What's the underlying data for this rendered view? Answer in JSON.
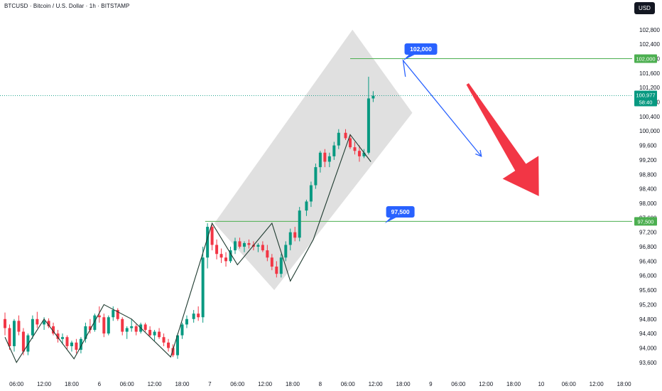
{
  "header": {
    "title": "BTCUSD · Bitcoin / U.S. Dollar · 1h · BITSTAMP",
    "currency": "USD"
  },
  "colors": {
    "up": "#089981",
    "down": "#f23645",
    "level_line": "#4caf50",
    "callout": "#2962ff",
    "arrow": "#f23645",
    "channel": "#9e9e9e"
  },
  "chart_data": {
    "type": "candlestick",
    "symbol": "BTCUSD",
    "interval": "1h",
    "exchange": "BITSTAMP",
    "ylim": [
      93400,
      103150
    ],
    "y_ticks": [
      93600,
      94000,
      94400,
      94800,
      95200,
      95600,
      96000,
      96400,
      96800,
      97200,
      97600,
      98000,
      98400,
      98800,
      99200,
      99600,
      100000,
      100400,
      100800,
      101200,
      101600,
      102000,
      102400,
      102800
    ],
    "y_tick_labels": [
      "93,600",
      "94,000",
      "94,400",
      "94,800",
      "95,200",
      "95,600",
      "96,000",
      "96,400",
      "96,800",
      "97,200",
      "97,600",
      "98,000",
      "98,400",
      "98,800",
      "99,200",
      "99,600",
      "100,000",
      "100,400",
      "100,800",
      "101,200",
      "101,600",
      "102,000",
      "102,400",
      "102,800"
    ],
    "x_ticks": [
      {
        "bar": 5,
        "label": "06:00"
      },
      {
        "bar": 17,
        "label": "12:00"
      },
      {
        "bar": 29,
        "label": "18:00"
      },
      {
        "bar": 41,
        "label": "6"
      },
      {
        "bar": 53,
        "label": "06:00"
      },
      {
        "bar": 65,
        "label": "12:00"
      },
      {
        "bar": 77,
        "label": "18:00"
      },
      {
        "bar": 89,
        "label": "7"
      },
      {
        "bar": 101,
        "label": "06:00"
      },
      {
        "bar": 113,
        "label": "12:00"
      },
      {
        "bar": 125,
        "label": "18:00"
      },
      {
        "bar": 137,
        "label": "8"
      },
      {
        "bar": 149,
        "label": "06:00"
      },
      {
        "bar": 161,
        "label": "12:00"
      },
      {
        "bar": 173,
        "label": "18:00"
      },
      {
        "bar": 185,
        "label": "9"
      },
      {
        "bar": 197,
        "label": "06:00"
      },
      {
        "bar": 209,
        "label": "12:00"
      },
      {
        "bar": 221,
        "label": "18:00"
      },
      {
        "bar": 233,
        "label": "10"
      },
      {
        "bar": 245,
        "label": "06:00"
      },
      {
        "bar": 257,
        "label": "12:00"
      },
      {
        "bar": 269,
        "label": "18:00"
      }
    ],
    "candles": [
      [
        94800,
        94980,
        94350,
        94550
      ],
      [
        94550,
        94650,
        93950,
        94050
      ],
      [
        94050,
        94800,
        93900,
        94750
      ],
      [
        94750,
        94900,
        94350,
        94450
      ],
      [
        94450,
        94550,
        93800,
        93900
      ],
      [
        93900,
        94400,
        93800,
        94350
      ],
      [
        94350,
        94900,
        94250,
        94800
      ],
      [
        94800,
        95000,
        94550,
        94650
      ],
      [
        94650,
        94850,
        94500,
        94750
      ],
      [
        94750,
        94820,
        94550,
        94600
      ],
      [
        94600,
        94700,
        94350,
        94400
      ],
      [
        94400,
        94500,
        94150,
        94250
      ],
      [
        94250,
        94400,
        94100,
        94300
      ],
      [
        94300,
        94350,
        93950,
        94050
      ],
      [
        94050,
        94200,
        93900,
        94150
      ],
      [
        94150,
        94250,
        93850,
        93950
      ],
      [
        93950,
        94300,
        93850,
        94250
      ],
      [
        94250,
        94700,
        94150,
        94600
      ],
      [
        94600,
        94800,
        94400,
        94500
      ],
      [
        94500,
        94950,
        94450,
        94900
      ],
      [
        94900,
        95150,
        94700,
        94850
      ],
      [
        94850,
        94950,
        94300,
        94400
      ],
      [
        94400,
        94900,
        94350,
        94850
      ],
      [
        94850,
        95150,
        94750,
        95050
      ],
      [
        95050,
        95100,
        94750,
        94800
      ],
      [
        94800,
        94850,
        94350,
        94450
      ],
      [
        94450,
        94600,
        94250,
        94550
      ],
      [
        94550,
        94800,
        94450,
        94600
      ],
      [
        94600,
        94650,
        94350,
        94450
      ],
      [
        94450,
        94700,
        94400,
        94650
      ],
      [
        94650,
        94700,
        94450,
        94500
      ],
      [
        94500,
        94600,
        94300,
        94350
      ],
      [
        94350,
        94500,
        94200,
        94450
      ],
      [
        94450,
        94550,
        94250,
        94300
      ],
      [
        94300,
        94400,
        94050,
        94150
      ],
      [
        94150,
        94250,
        93900,
        94000
      ],
      [
        94000,
        94100,
        93750,
        93800
      ],
      [
        93800,
        94400,
        93700,
        94350
      ],
      [
        94350,
        94700,
        94250,
        94650
      ],
      [
        94650,
        94900,
        94550,
        94800
      ],
      [
        94800,
        95050,
        94700,
        94950
      ],
      [
        94950,
        95150,
        94750,
        94850
      ],
      [
        94850,
        96800,
        94700,
        96500
      ],
      [
        96500,
        97450,
        96200,
        97350
      ],
      [
        97350,
        97400,
        96700,
        96850
      ],
      [
        96850,
        97000,
        96450,
        96600
      ],
      [
        96600,
        96750,
        96350,
        96500
      ],
      [
        96500,
        96650,
        96250,
        96400
      ],
      [
        96400,
        96800,
        96350,
        96700
      ],
      [
        96700,
        97050,
        96600,
        96950
      ],
      [
        96950,
        97050,
        96750,
        96800
      ],
      [
        96800,
        96950,
        96650,
        96900
      ],
      [
        96900,
        97000,
        96750,
        96850
      ],
      [
        96850,
        96950,
        96700,
        96800
      ],
      [
        96800,
        96900,
        96650,
        96850
      ],
      [
        96850,
        96950,
        96650,
        96700
      ],
      [
        96700,
        96850,
        96400,
        96500
      ],
      [
        96500,
        96600,
        96150,
        96250
      ],
      [
        96250,
        96400,
        95950,
        96050
      ],
      [
        96050,
        96600,
        95950,
        96500
      ],
      [
        96500,
        96950,
        96400,
        96850
      ],
      [
        96850,
        97300,
        96700,
        97200
      ],
      [
        97200,
        97350,
        96950,
        97050
      ],
      [
        97050,
        97900,
        96950,
        97800
      ],
      [
        97800,
        98100,
        97650,
        98050
      ],
      [
        98050,
        98600,
        97900,
        98500
      ],
      [
        98500,
        99100,
        98400,
        99000
      ],
      [
        99000,
        99450,
        98850,
        99400
      ],
      [
        99400,
        99500,
        99000,
        99150
      ],
      [
        99150,
        99400,
        99000,
        99300
      ],
      [
        99300,
        99700,
        99200,
        99600
      ],
      [
        99600,
        100050,
        99500,
        99950
      ],
      [
        99950,
        100050,
        99750,
        99800
      ],
      [
        99800,
        99900,
        99500,
        99550
      ],
      [
        99550,
        99700,
        99350,
        99450
      ],
      [
        99450,
        99600,
        99150,
        99300
      ],
      [
        99300,
        99500,
        99250,
        99400
      ],
      [
        99400,
        101500,
        99350,
        100900
      ],
      [
        100900,
        101100,
        100800,
        100977
      ]
    ],
    "candle_x": [
      0,
      2,
      4,
      6,
      8,
      10,
      12,
      14,
      17,
      19,
      21,
      23,
      25,
      27,
      29,
      31,
      33,
      35,
      37,
      39,
      41,
      43,
      45,
      47,
      49,
      51,
      53,
      55,
      57,
      59,
      61,
      63,
      65,
      67,
      69,
      71,
      73,
      75,
      77,
      79,
      82,
      84,
      86,
      88,
      90,
      92,
      94,
      96,
      98,
      100,
      102,
      104,
      106,
      108,
      110,
      112,
      114,
      116,
      118,
      120,
      122,
      124,
      126,
      128,
      131,
      133,
      135,
      137,
      139,
      141,
      143,
      145,
      148,
      150,
      152,
      154,
      156,
      158,
      160
    ],
    "zigzag": [
      [
        0,
        94300
      ],
      [
        5,
        93600
      ],
      [
        17,
        94800
      ],
      [
        30,
        93700
      ],
      [
        43,
        95200
      ],
      [
        55,
        94800
      ],
      [
        72,
        93750
      ],
      [
        90,
        97450
      ],
      [
        101,
        96300
      ],
      [
        116,
        97450
      ],
      [
        124,
        95850
      ],
      [
        134,
        97000
      ],
      [
        150,
        99900
      ],
      [
        159,
        99150
      ]
    ],
    "channel": [
      [
        91,
        97450
      ],
      [
        151,
        102800
      ],
      [
        177,
        100500
      ],
      [
        117,
        95600
      ]
    ],
    "levels": [
      {
        "price": 102000,
        "x_start": 150,
        "label": "102,000"
      },
      {
        "price": 97500,
        "x_start": 87,
        "label": "97,500"
      }
    ],
    "current_price": {
      "value": 100977,
      "label": "100,977",
      "countdown": "58:40"
    },
    "projection": [
      [
        174,
        101500
      ],
      [
        207,
        99300
      ]
    ],
    "callouts": [
      {
        "label": "102,000",
        "anchor": [
          173,
          101950
        ]
      },
      {
        "label": "97,500",
        "anchor": [
          165,
          97450
        ]
      }
    ],
    "big_arrow": {
      "from": [
        201,
        101300
      ],
      "to": [
        232,
        98200
      ]
    }
  }
}
